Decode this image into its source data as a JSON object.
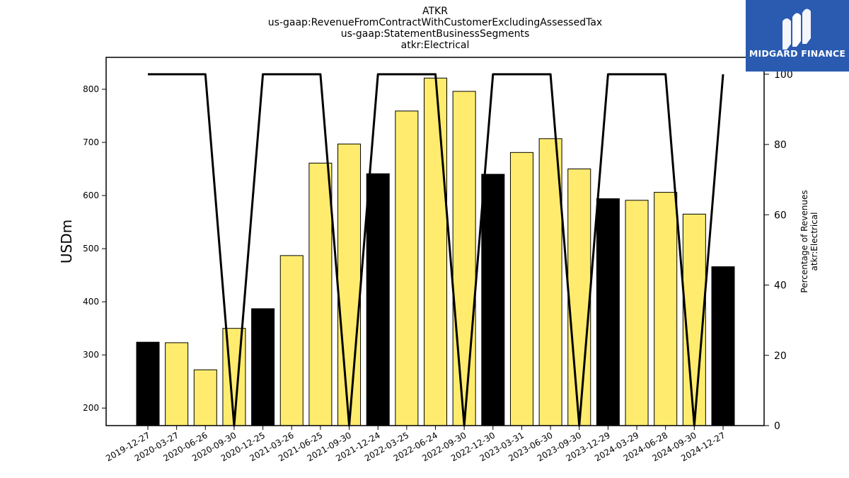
{
  "logo": {
    "text": "MIDGARD FINANCE",
    "background": "#2a5bb0",
    "icon": "midgard-m-logo-icon"
  },
  "chart_data": {
    "type": "bar",
    "title": [
      "ATKR",
      "us-gaap:RevenueFromContractWithCustomerExcludingAssessedTax",
      "us-gaap:StatementBusinessSegments",
      "atkr:Electrical"
    ],
    "categories": [
      "2019-12-27",
      "2020-03-27",
      "2020-06-26",
      "2020-09-30",
      "2020-12-25",
      "2021-03-26",
      "2021-06-25",
      "2021-09-30",
      "2021-12-24",
      "2022-03-25",
      "2022-06-24",
      "2022-09-30",
      "2022-12-30",
      "2023-03-31",
      "2023-06-30",
      "2023-09-30",
      "2023-12-29",
      "2024-03-29",
      "2024-06-28",
      "2024-09-30",
      "2024-12-27"
    ],
    "series": [
      {
        "axis": "left",
        "values": [
          324,
          323,
          272,
          350,
          387,
          487,
          661,
          697,
          641,
          759,
          821,
          796,
          640,
          681,
          707,
          650,
          594,
          591,
          606,
          565,
          466
        ],
        "highlight": [
          true,
          false,
          false,
          false,
          true,
          false,
          false,
          false,
          true,
          false,
          false,
          false,
          true,
          false,
          false,
          false,
          true,
          false,
          false,
          false,
          true
        ]
      },
      {
        "axis": "right",
        "type": "line",
        "values": [
          100,
          100,
          100,
          0,
          100,
          100,
          100,
          0,
          100,
          100,
          100,
          0,
          100,
          100,
          100,
          0,
          100,
          100,
          100,
          0,
          100
        ]
      }
    ],
    "ylabel": "USDm",
    "y2label": [
      "Percentage of Revenues",
      "atkr:Electrical"
    ],
    "ylim": [
      167,
      860
    ],
    "y2lim": [
      0,
      104.8
    ],
    "yticks": [
      200,
      300,
      400,
      500,
      600,
      700,
      800
    ],
    "y2ticks": [
      0,
      20,
      40,
      60,
      80,
      100
    ],
    "colors": {
      "bar": "#ffec6e",
      "highlight_bar": "#000000",
      "line": "#000000"
    },
    "grid": false
  }
}
